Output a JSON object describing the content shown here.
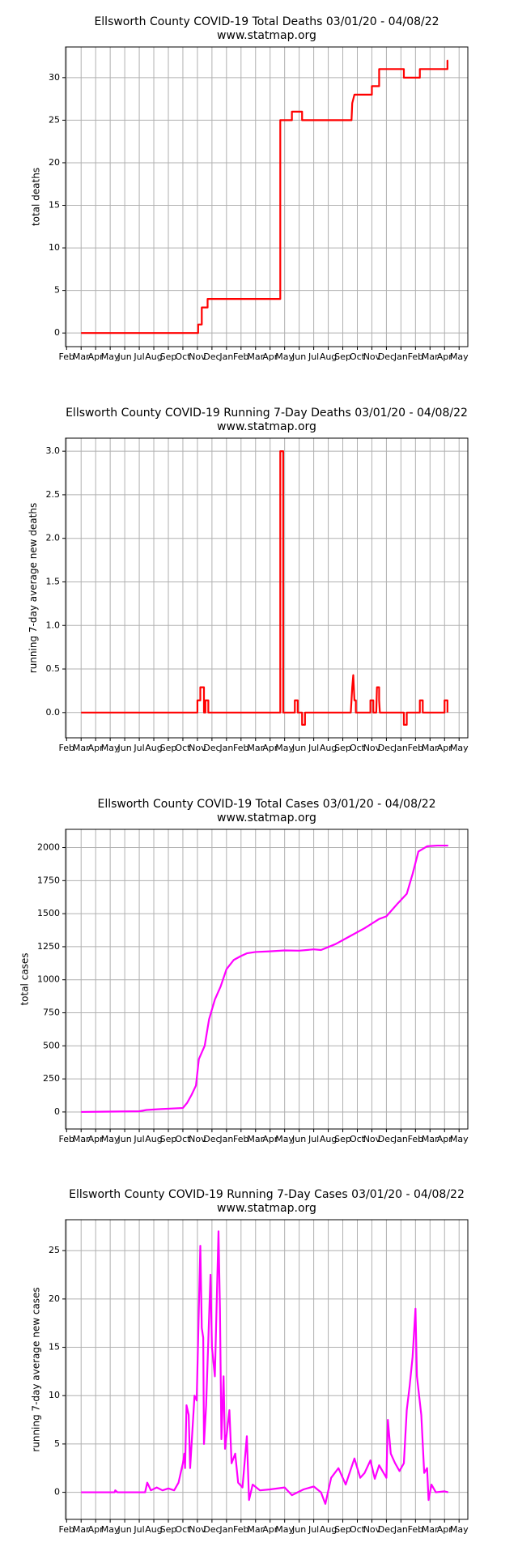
{
  "chart_data": [
    {
      "type": "line",
      "title": "Ellsworth County COVID-19 Total Deaths 03/01/20 - 04/08/22",
      "subtitle": "www.statmap.org",
      "y_label": "total deaths",
      "color": "#ff0000",
      "grid": true,
      "xlim": [
        -0.07,
        27.6
      ],
      "ylim": [
        -1.6,
        33.6
      ],
      "xticks": [
        {
          "value": 0,
          "label": "Feb"
        },
        {
          "value": 1,
          "label": "Mar"
        },
        {
          "value": 2,
          "label": "Apr"
        },
        {
          "value": 3,
          "label": "May"
        },
        {
          "value": 4,
          "label": "Jun"
        },
        {
          "value": 5,
          "label": "Jul"
        },
        {
          "value": 6,
          "label": "Aug"
        },
        {
          "value": 7,
          "label": "Sep"
        },
        {
          "value": 8,
          "label": "Oct"
        },
        {
          "value": 9,
          "label": "Nov"
        },
        {
          "value": 10,
          "label": "Dec"
        },
        {
          "value": 11,
          "label": "Jan"
        },
        {
          "value": 12,
          "label": "Feb"
        },
        {
          "value": 13,
          "label": "Mar"
        },
        {
          "value": 14,
          "label": "Apr"
        },
        {
          "value": 15,
          "label": "May"
        },
        {
          "value": 16,
          "label": "Jun"
        },
        {
          "value": 17,
          "label": "Jul"
        },
        {
          "value": 18,
          "label": "Aug"
        },
        {
          "value": 19,
          "label": "Sep"
        },
        {
          "value": 20,
          "label": "Oct"
        },
        {
          "value": 21,
          "label": "Nov"
        },
        {
          "value": 22,
          "label": "Dec"
        },
        {
          "value": 23,
          "label": "Jan"
        },
        {
          "value": 24,
          "label": "Feb"
        },
        {
          "value": 25,
          "label": "Mar"
        },
        {
          "value": 26,
          "label": "Apr"
        },
        {
          "value": 27,
          "label": "May"
        }
      ],
      "yticks": [
        0,
        5,
        10,
        15,
        20,
        25,
        30
      ],
      "x": [
        1,
        9.05,
        9.05,
        9.3,
        9.3,
        9.7,
        9.7,
        14.7,
        14.7,
        15.5,
        15.5,
        16.2,
        16.2,
        19.6,
        19.65,
        19.8,
        21.0,
        21.0,
        21.5,
        21.5,
        23.2,
        23.2,
        24.3,
        24.3,
        26.2,
        26.2,
        26.25
      ],
      "values": [
        0,
        0,
        1,
        1,
        3,
        3,
        4,
        4,
        25,
        25,
        26,
        26,
        25,
        25,
        27,
        28,
        28,
        29,
        29,
        31,
        31,
        30,
        30,
        31,
        31,
        32,
        32
      ]
    },
    {
      "type": "line",
      "title": "Ellsworth County COVID-19 Running 7-Day Deaths 03/01/20 - 04/08/22",
      "subtitle": "www.statmap.org",
      "y_label": "running 7-day average new deaths",
      "color": "#ff0000",
      "grid": true,
      "xlim": [
        -0.07,
        27.6
      ],
      "ylim": [
        -0.29,
        3.15
      ],
      "xticks": [
        {
          "value": 0,
          "label": "Feb"
        },
        {
          "value": 1,
          "label": "Mar"
        },
        {
          "value": 2,
          "label": "Apr"
        },
        {
          "value": 3,
          "label": "May"
        },
        {
          "value": 4,
          "label": "Jun"
        },
        {
          "value": 5,
          "label": "Jul"
        },
        {
          "value": 6,
          "label": "Aug"
        },
        {
          "value": 7,
          "label": "Sep"
        },
        {
          "value": 8,
          "label": "Oct"
        },
        {
          "value": 9,
          "label": "Nov"
        },
        {
          "value": 10,
          "label": "Dec"
        },
        {
          "value": 11,
          "label": "Jan"
        },
        {
          "value": 12,
          "label": "Feb"
        },
        {
          "value": 13,
          "label": "Mar"
        },
        {
          "value": 14,
          "label": "Apr"
        },
        {
          "value": 15,
          "label": "May"
        },
        {
          "value": 16,
          "label": "Jun"
        },
        {
          "value": 17,
          "label": "Jul"
        },
        {
          "value": 18,
          "label": "Aug"
        },
        {
          "value": 19,
          "label": "Sep"
        },
        {
          "value": 20,
          "label": "Oct"
        },
        {
          "value": 21,
          "label": "Nov"
        },
        {
          "value": 22,
          "label": "Dec"
        },
        {
          "value": 23,
          "label": "Jan"
        },
        {
          "value": 24,
          "label": "Feb"
        },
        {
          "value": 25,
          "label": "Mar"
        },
        {
          "value": 26,
          "label": "Apr"
        },
        {
          "value": 27,
          "label": "May"
        }
      ],
      "yticks": [
        {
          "value": 0,
          "label": "0.0"
        },
        {
          "value": 0.5,
          "label": "0.5"
        },
        {
          "value": 1,
          "label": "1.0"
        },
        {
          "value": 1.5,
          "label": "1.5"
        },
        {
          "value": 2,
          "label": "2.0"
        },
        {
          "value": 2.5,
          "label": "2.5"
        },
        {
          "value": 3,
          "label": "3.0"
        }
      ],
      "x": [
        1,
        9,
        9,
        9.2,
        9.2,
        9.45,
        9.45,
        9.55,
        9.55,
        9.75,
        9.75,
        14.7,
        14.7,
        14.9,
        14.9,
        15.7,
        15.7,
        15.9,
        15.9,
        16.2,
        16.2,
        16.4,
        16.4,
        19.55,
        19.65,
        19.72,
        19.8,
        19.9,
        19.9,
        20.9,
        20.9,
        21.1,
        21.1,
        21.3,
        21.35,
        21.5,
        21.5,
        21.55,
        23.2,
        23.2,
        23.4,
        23.4,
        24.3,
        24.3,
        24.5,
        24.5,
        26,
        26,
        26.2,
        26.2
      ],
      "values": [
        0,
        0,
        0.14,
        0.14,
        0.29,
        0.29,
        0,
        0,
        0.14,
        0.14,
        0,
        0,
        3,
        3,
        0,
        0,
        0.14,
        0.14,
        0,
        0,
        -0.14,
        -0.14,
        0,
        0,
        0.29,
        0.43,
        0.14,
        0.14,
        0,
        0,
        0.14,
        0.14,
        0,
        0,
        0.29,
        0.29,
        0.14,
        0,
        0,
        -0.14,
        -0.14,
        0,
        0,
        0.14,
        0.14,
        0,
        0,
        0.14,
        0.14,
        0
      ]
    },
    {
      "type": "line",
      "title": "Ellsworth County COVID-19 Total Cases 03/01/20 - 04/08/22",
      "subtitle": "www.statmap.org",
      "y_label": "total cases",
      "color": "#ff00ff",
      "grid": true,
      "xlim": [
        -0.07,
        27.6
      ],
      "ylim": [
        -129,
        2138
      ],
      "xticks": [
        {
          "value": 0,
          "label": "Feb"
        },
        {
          "value": 1,
          "label": "Mar"
        },
        {
          "value": 2,
          "label": "Apr"
        },
        {
          "value": 3,
          "label": "May"
        },
        {
          "value": 4,
          "label": "Jun"
        },
        {
          "value": 5,
          "label": "Jul"
        },
        {
          "value": 6,
          "label": "Aug"
        },
        {
          "value": 7,
          "label": "Sep"
        },
        {
          "value": 8,
          "label": "Oct"
        },
        {
          "value": 9,
          "label": "Nov"
        },
        {
          "value": 10,
          "label": "Dec"
        },
        {
          "value": 11,
          "label": "Jan"
        },
        {
          "value": 12,
          "label": "Feb"
        },
        {
          "value": 13,
          "label": "Mar"
        },
        {
          "value": 14,
          "label": "Apr"
        },
        {
          "value": 15,
          "label": "May"
        },
        {
          "value": 16,
          "label": "Jun"
        },
        {
          "value": 17,
          "label": "Jul"
        },
        {
          "value": 18,
          "label": "Aug"
        },
        {
          "value": 19,
          "label": "Sep"
        },
        {
          "value": 20,
          "label": "Oct"
        },
        {
          "value": 21,
          "label": "Nov"
        },
        {
          "value": 22,
          "label": "Dec"
        },
        {
          "value": 23,
          "label": "Jan"
        },
        {
          "value": 24,
          "label": "Feb"
        },
        {
          "value": 25,
          "label": "Mar"
        },
        {
          "value": 26,
          "label": "Apr"
        },
        {
          "value": 27,
          "label": "May"
        }
      ],
      "yticks": [
        0,
        250,
        500,
        750,
        1000,
        1250,
        1500,
        1750,
        2000
      ],
      "x": [
        1,
        5,
        5.5,
        6.5,
        8,
        8.3,
        8.6,
        8.9,
        9.1,
        9.5,
        9.8,
        10.2,
        10.6,
        11,
        11.5,
        12,
        12.4,
        13,
        14,
        15,
        16,
        17,
        17.5,
        18.5,
        19.5,
        20.5,
        21.5,
        22,
        22.8,
        23.4,
        23.8,
        24.2,
        24.8,
        25.5,
        26.25
      ],
      "values": [
        0,
        5,
        15,
        22,
        30,
        70,
        130,
        200,
        400,
        500,
        700,
        850,
        950,
        1080,
        1150,
        1180,
        1200,
        1210,
        1215,
        1222,
        1220,
        1230,
        1225,
        1270,
        1330,
        1390,
        1460,
        1480,
        1580,
        1650,
        1800,
        1970,
        2010,
        2015,
        2015
      ]
    },
    {
      "type": "line",
      "title": "Ellsworth County COVID-19 Running 7-Day Cases 03/01/20 - 04/08/22",
      "subtitle": "www.statmap.org",
      "y_label": "running 7-day average new cases",
      "color": "#ff00ff",
      "grid": true,
      "xlim": [
        -0.07,
        27.6
      ],
      "ylim": [
        -2.8,
        28.2
      ],
      "xticks": [
        {
          "value": 0,
          "label": "Feb"
        },
        {
          "value": 1,
          "label": "Mar"
        },
        {
          "value": 2,
          "label": "Apr"
        },
        {
          "value": 3,
          "label": "May"
        },
        {
          "value": 4,
          "label": "Jun"
        },
        {
          "value": 5,
          "label": "Jul"
        },
        {
          "value": 6,
          "label": "Aug"
        },
        {
          "value": 7,
          "label": "Sep"
        },
        {
          "value": 8,
          "label": "Oct"
        },
        {
          "value": 9,
          "label": "Nov"
        },
        {
          "value": 10,
          "label": "Dec"
        },
        {
          "value": 11,
          "label": "Jan"
        },
        {
          "value": 12,
          "label": "Feb"
        },
        {
          "value": 13,
          "label": "Mar"
        },
        {
          "value": 14,
          "label": "Apr"
        },
        {
          "value": 15,
          "label": "May"
        },
        {
          "value": 16,
          "label": "Jun"
        },
        {
          "value": 17,
          "label": "Jul"
        },
        {
          "value": 18,
          "label": "Aug"
        },
        {
          "value": 19,
          "label": "Sep"
        },
        {
          "value": 20,
          "label": "Oct"
        },
        {
          "value": 21,
          "label": "Nov"
        },
        {
          "value": 22,
          "label": "Dec"
        },
        {
          "value": 23,
          "label": "Jan"
        },
        {
          "value": 24,
          "label": "Feb"
        },
        {
          "value": 25,
          "label": "Mar"
        },
        {
          "value": 26,
          "label": "Apr"
        },
        {
          "value": 27,
          "label": "May"
        }
      ],
      "yticks": [
        0,
        5,
        10,
        15,
        20,
        25
      ],
      "x": [
        1,
        3.3,
        3.35,
        3.5,
        5.4,
        5.55,
        5.8,
        6.2,
        6.6,
        7,
        7.4,
        7.7,
        8.0,
        8.1,
        8.15,
        8.25,
        8.4,
        8.5,
        8.8,
        8.95,
        9.2,
        9.3,
        9.4,
        9.45,
        9.6,
        9.9,
        10.0,
        10.2,
        10.45,
        10.55,
        10.65,
        10.8,
        10.9,
        11.2,
        11.35,
        11.6,
        11.8,
        12.1,
        12.4,
        12.55,
        12.8,
        13.3,
        14,
        15,
        15.5,
        16.3,
        17,
        17.5,
        17.8,
        18.2,
        18.7,
        19.2,
        19.8,
        20.2,
        20.5,
        20.9,
        21.2,
        21.5,
        22.0,
        22.1,
        22.3,
        22.6,
        22.9,
        23.2,
        23.4,
        23.6,
        23.8,
        24.0,
        24.1,
        24.4,
        24.6,
        24.8,
        24.9,
        25.1,
        25.4,
        26,
        26.25
      ],
      "values": [
        0,
        0,
        0.2,
        0,
        0,
        1,
        0.2,
        0.5,
        0.2,
        0.4,
        0.2,
        1,
        3,
        4,
        2.5,
        9,
        8,
        2.5,
        10,
        9.5,
        25.5,
        17,
        16,
        5,
        9,
        22.5,
        15,
        12,
        27,
        19,
        5.5,
        12,
        4.5,
        8.5,
        3,
        4,
        1,
        0.5,
        5.8,
        -0.8,
        0.8,
        0.2,
        0.3,
        0.5,
        -0.3,
        0.3,
        0.6,
        0,
        -1.2,
        1.5,
        2.5,
        0.8,
        3.5,
        1.5,
        2,
        3.3,
        1.4,
        2.8,
        1.5,
        7.5,
        4,
        3,
        2.2,
        3,
        8.5,
        11,
        14,
        19,
        12,
        8,
        2,
        2.5,
        -0.8,
        0.8,
        0,
        0.1,
        0
      ]
    }
  ]
}
